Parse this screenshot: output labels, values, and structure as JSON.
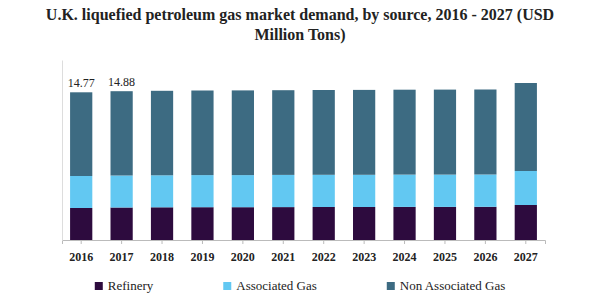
{
  "chart_data": {
    "type": "bar",
    "title": "U.K. liquefied petroleum gas market demand, by source, 2016 - 2027 (USD Million Tons)",
    "categories": [
      "2016",
      "2017",
      "2018",
      "2019",
      "2020",
      "2021",
      "2022",
      "2023",
      "2024",
      "2025",
      "2026",
      "2027"
    ],
    "series": [
      {
        "name": "Refinery",
        "color": "#2d0b3e",
        "values": [
          3.2,
          3.25,
          3.27,
          3.28,
          3.28,
          3.29,
          3.3,
          3.3,
          3.31,
          3.31,
          3.32,
          3.5
        ]
      },
      {
        "name": "Associated Gas",
        "color": "#62c8f2",
        "values": [
          3.2,
          3.2,
          3.2,
          3.21,
          3.21,
          3.22,
          3.22,
          3.22,
          3.23,
          3.23,
          3.23,
          3.4
        ]
      },
      {
        "name": "Non Associated Gas",
        "color": "#3d6b82",
        "values": [
          8.37,
          8.43,
          8.45,
          8.46,
          8.47,
          8.47,
          8.48,
          8.49,
          8.49,
          8.5,
          8.5,
          8.8
        ]
      }
    ],
    "annotations": [
      {
        "x": "2016",
        "y": 14.77,
        "text": "14.77"
      },
      {
        "x": "2017",
        "y": 14.88,
        "text": "14.88"
      }
    ],
    "ylim": [
      0,
      18
    ],
    "stacked": true,
    "grid": false,
    "legend": "bottom",
    "tick_labels": "x"
  }
}
